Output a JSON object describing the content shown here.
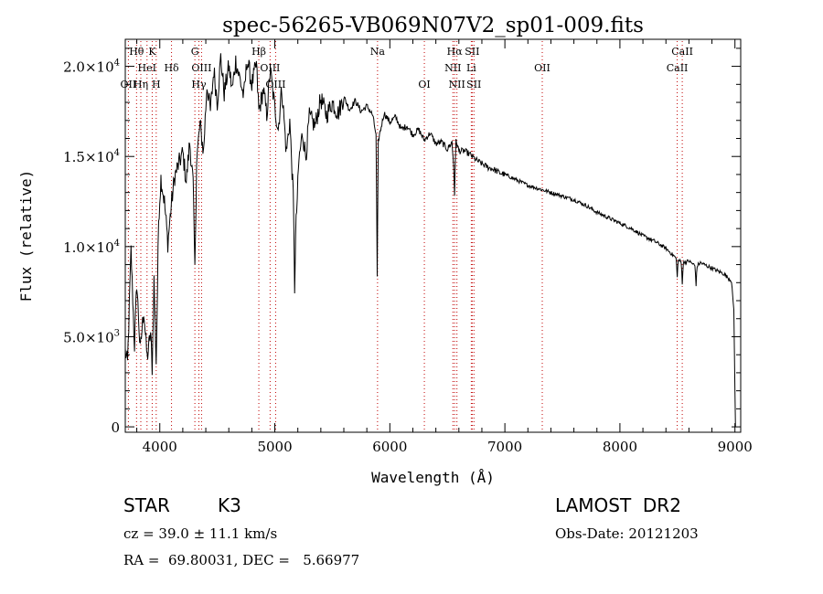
{
  "chart_data": {
    "type": "line",
    "title": "spec-56265-VB069N07V2_sp01-009.fits",
    "xlabel": "Wavelength (Å)",
    "ylabel": "Flux (relative)",
    "xlim": [
      3700,
      9050
    ],
    "ylim": [
      -300,
      21500
    ],
    "xticks": [
      {
        "value": 4000,
        "label": "4000"
      },
      {
        "value": 5000,
        "label": "5000"
      },
      {
        "value": 6000,
        "label": "6000"
      },
      {
        "value": 7000,
        "label": "7000"
      },
      {
        "value": 8000,
        "label": "8000"
      },
      {
        "value": 9000,
        "label": "9000"
      }
    ],
    "yticks": [
      {
        "value": 0,
        "label": "0",
        "exp": ""
      },
      {
        "value": 5000,
        "label": "5.0×10",
        "exp": "3"
      },
      {
        "value": 10000,
        "label": "1.0×10",
        "exp": "4"
      },
      {
        "value": 15000,
        "label": "1.5×10",
        "exp": "4"
      },
      {
        "value": 20000,
        "label": "2.0×10",
        "exp": "4"
      }
    ],
    "grid": false,
    "line_color": "#000000",
    "marker_color": "#c00000",
    "markers": [
      {
        "label": "Hθ",
        "x": 3798,
        "row": 0
      },
      {
        "label": "K",
        "x": 3934,
        "row": 0
      },
      {
        "label": "G",
        "x": 4305,
        "row": 0
      },
      {
        "label": "Hβ",
        "x": 4861,
        "row": 0
      },
      {
        "label": "Na",
        "x": 5893,
        "row": 0
      },
      {
        "label": "Hα",
        "x": 6563,
        "row": 0
      },
      {
        "label": "SII",
        "x": 6716,
        "row": 0
      },
      {
        "label": "CaII",
        "x": 8542,
        "row": 0
      },
      {
        "label": "HeI",
        "x": 3889,
        "row": 1
      },
      {
        "label": "Hδ",
        "x": 4102,
        "row": 1
      },
      {
        "label": "OIII",
        "x": 4363,
        "row": 1
      },
      {
        "label": "OIII",
        "x": 4959,
        "row": 1
      },
      {
        "label": "NII",
        "x": 6548,
        "row": 1
      },
      {
        "label": "Li",
        "x": 6708,
        "row": 1
      },
      {
        "label": "OII",
        "x": 7325,
        "row": 1
      },
      {
        "label": "CaII",
        "x": 8498,
        "row": 1
      },
      {
        "label": "OII",
        "x": 3727,
        "row": 2
      },
      {
        "label": "Hη",
        "x": 3835,
        "row": 2
      },
      {
        "label": "H",
        "x": 3969,
        "row": 2
      },
      {
        "label": "Hγ",
        "x": 4340,
        "row": 2
      },
      {
        "label": "OIII",
        "x": 5007,
        "row": 2
      },
      {
        "label": "OI",
        "x": 6300,
        "row": 2
      },
      {
        "label": "NII",
        "x": 6583,
        "row": 2
      },
      {
        "label": "SII",
        "x": 6731,
        "row": 2
      }
    ],
    "anchors": [
      [
        3700,
        4200
      ],
      [
        3720,
        3500
      ],
      [
        3750,
        9800
      ],
      [
        3780,
        4500
      ],
      [
        3800,
        8000
      ],
      [
        3830,
        4200
      ],
      [
        3860,
        6500
      ],
      [
        3890,
        3800
      ],
      [
        3920,
        5200
      ],
      [
        3934,
        3300
      ],
      [
        3950,
        8200
      ],
      [
        3969,
        3600
      ],
      [
        3990,
        11500
      ],
      [
        4010,
        13800
      ],
      [
        4040,
        12500
      ],
      [
        4070,
        10200
      ],
      [
        4100,
        12300
      ],
      [
        4130,
        13900
      ],
      [
        4160,
        14500
      ],
      [
        4200,
        15200
      ],
      [
        4230,
        13600
      ],
      [
        4260,
        15800
      ],
      [
        4290,
        13500
      ],
      [
        4305,
        8600
      ],
      [
        4320,
        14800
      ],
      [
        4350,
        16800
      ],
      [
        4380,
        15200
      ],
      [
        4410,
        19000
      ],
      [
        4440,
        17500
      ],
      [
        4470,
        19800
      ],
      [
        4500,
        18000
      ],
      [
        4530,
        20500
      ],
      [
        4560,
        18500
      ],
      [
        4600,
        20000
      ],
      [
        4630,
        18700
      ],
      [
        4660,
        20300
      ],
      [
        4700,
        19200
      ],
      [
        4730,
        18300
      ],
      [
        4760,
        20400
      ],
      [
        4800,
        19000
      ],
      [
        4840,
        20100
      ],
      [
        4861,
        17500
      ],
      [
        4900,
        18700
      ],
      [
        4930,
        17300
      ],
      [
        4960,
        19800
      ],
      [
        5000,
        17700
      ],
      [
        5030,
        16500
      ],
      [
        5060,
        18800
      ],
      [
        5080,
        17100
      ],
      [
        5100,
        15200
      ],
      [
        5130,
        17000
      ],
      [
        5160,
        12800
      ],
      [
        5172,
        9200
      ],
      [
        5185,
        11300
      ],
      [
        5210,
        14800
      ],
      [
        5240,
        16300
      ],
      [
        5270,
        15000
      ],
      [
        5300,
        17200
      ],
      [
        5350,
        16700
      ],
      [
        5400,
        18200
      ],
      [
        5450,
        17300
      ],
      [
        5500,
        18000
      ],
      [
        5550,
        17400
      ],
      [
        5600,
        18300
      ],
      [
        5650,
        17600
      ],
      [
        5700,
        18100
      ],
      [
        5750,
        17500
      ],
      [
        5800,
        17800
      ],
      [
        5850,
        17300
      ],
      [
        5880,
        16200
      ],
      [
        5890,
        10200
      ],
      [
        5900,
        15900
      ],
      [
        5950,
        17400
      ],
      [
        6000,
        16900
      ],
      [
        6050,
        17200
      ],
      [
        6100,
        16500
      ],
      [
        6150,
        16700
      ],
      [
        6200,
        16200
      ],
      [
        6250,
        16500
      ],
      [
        6300,
        15900
      ],
      [
        6350,
        16300
      ],
      [
        6400,
        15700
      ],
      [
        6450,
        15800
      ],
      [
        6500,
        15400
      ],
      [
        6540,
        15800
      ],
      [
        6563,
        13800
      ],
      [
        6575,
        15900
      ],
      [
        6600,
        15300
      ],
      [
        6650,
        15300
      ],
      [
        6700,
        15100
      ],
      [
        6750,
        14800
      ],
      [
        6800,
        14600
      ],
      [
        6850,
        14400
      ],
      [
        6900,
        14300
      ],
      [
        6950,
        14100
      ],
      [
        7000,
        14000
      ],
      [
        7100,
        13700
      ],
      [
        7200,
        13400
      ],
      [
        7300,
        13200
      ],
      [
        7400,
        13000
      ],
      [
        7500,
        12800
      ],
      [
        7600,
        12600
      ],
      [
        7700,
        12300
      ],
      [
        7800,
        11900
      ],
      [
        7900,
        11600
      ],
      [
        8000,
        11300
      ],
      [
        8100,
        11000
      ],
      [
        8200,
        10600
      ],
      [
        8300,
        10300
      ],
      [
        8400,
        9900
      ],
      [
        8498,
        9300
      ],
      [
        8542,
        9100
      ],
      [
        8600,
        9200
      ],
      [
        8662,
        8900
      ],
      [
        8700,
        9100
      ],
      [
        8800,
        8800
      ],
      [
        8900,
        8500
      ],
      [
        8970,
        8100
      ],
      [
        8990,
        6500
      ],
      [
        9000,
        2000
      ],
      [
        9005,
        0
      ]
    ],
    "absorption_lines": [
      {
        "x": 5172,
        "depth": 1500
      },
      {
        "x": 5890,
        "depth": 2000
      },
      {
        "x": 6563,
        "depth": 900
      },
      {
        "x": 8498,
        "depth": 900
      },
      {
        "x": 8542,
        "depth": 1100
      },
      {
        "x": 8662,
        "depth": 1000
      }
    ]
  },
  "info": {
    "object_type": "STAR",
    "subclass": "K3",
    "survey": "LAMOST  DR2",
    "redshift": "cz = 39.0 ± 11.1 km/s",
    "obs_date": "Obs-Date: 20121203",
    "coords": "RA =  69.80031, DEC =   5.66977"
  }
}
